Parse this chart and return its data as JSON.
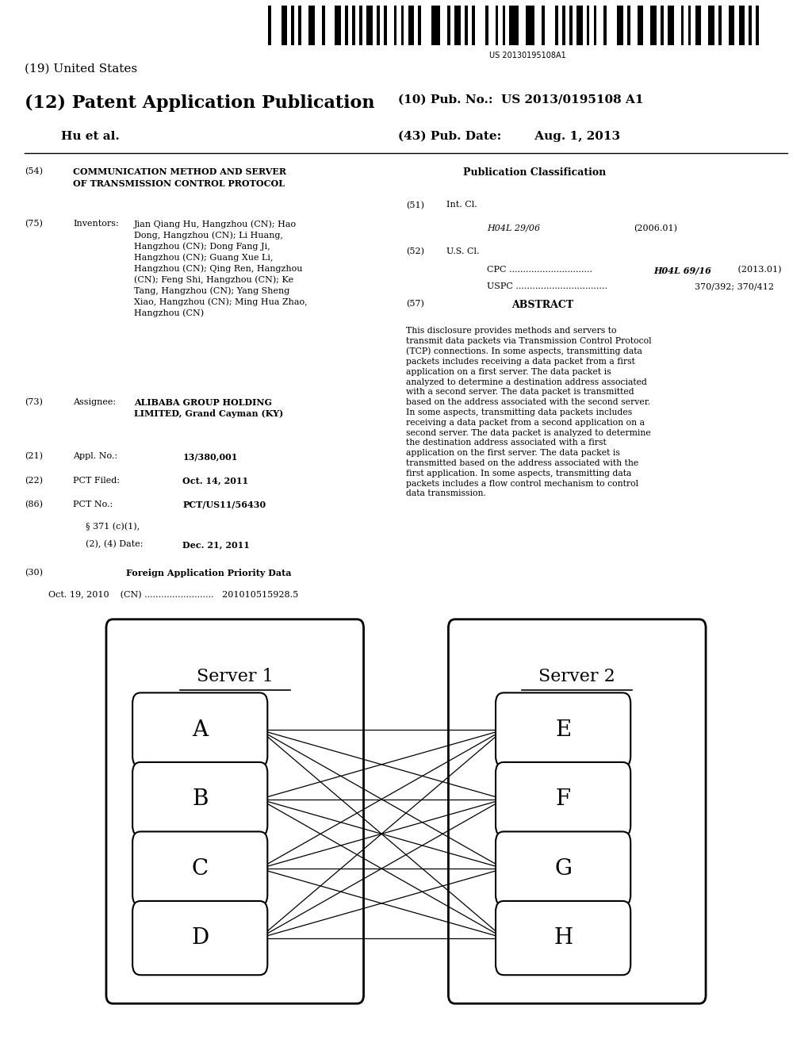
{
  "background_color": "#ffffff",
  "barcode_text": "US 20130195108A1",
  "title_19": "(19) United States",
  "title_12": "(12) Patent Application Publication",
  "pub_no_label": "(10) Pub. No.:",
  "pub_no_value": "US 2013/0195108 A1",
  "author": "Hu et al.",
  "pub_date_label": "(43) Pub. Date:",
  "pub_date_value": "Aug. 1, 2013",
  "pub_class_title": "Publication Classification",
  "abstract_text": "This disclosure provides methods and servers to transmit data packets via Transmission Control Protocol (TCP) connections. In some aspects, transmitting data packets includes receiving a data packet from a first application on a first server. The data packet is analyzed to determine a destination address associated with a second server. The data packet is transmitted based on the address associated with the second server. In some aspects, transmitting data packets includes receiving a data packet from a second application on a second server. The data packet is analyzed to determine the destination address associated with a first application on the first server. The data packet is transmitted based on the address associated with the first application. In some aspects, transmitting data packets includes a flow control mechanism to control data transmission.",
  "diagram": {
    "server1_label": "Server 1",
    "server2_label": "Server 2",
    "left_nodes": [
      "A",
      "B",
      "C",
      "D"
    ],
    "right_nodes": [
      "E",
      "F",
      "G",
      "H"
    ]
  }
}
